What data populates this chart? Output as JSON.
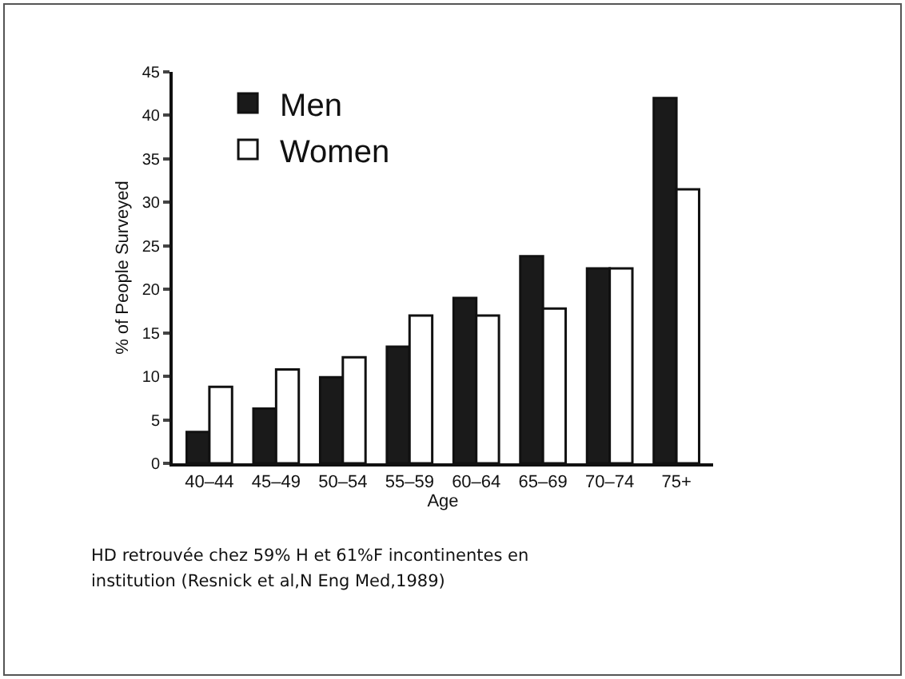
{
  "chart_data": {
    "type": "bar",
    "xlabel": "Age",
    "ylabel": "% of People Surveyed",
    "categories": [
      "40–44",
      "45–49",
      "50–54",
      "55–59",
      "60–64",
      "65–69",
      "70–74",
      "75+"
    ],
    "series": [
      {
        "name": "Men",
        "color": "#1a1a1a",
        "values": [
          3.6,
          6.3,
          9.9,
          13.4,
          19.0,
          23.8,
          22.4,
          42.0
        ]
      },
      {
        "name": "Women",
        "color": "#ffffff",
        "values": [
          8.8,
          10.8,
          12.2,
          17.0,
          17.0,
          17.8,
          22.4,
          31.5
        ]
      }
    ],
    "ylim": [
      0,
      45
    ],
    "yticks": [
      0,
      5,
      10,
      15,
      20,
      25,
      30,
      35,
      40,
      45
    ],
    "grid": false,
    "legend": "top left",
    "annotations": [
      "HD retrouvée chez 59% H et 61%F incontinentes en institution (Resnick et al,N Eng Med,1989)"
    ]
  }
}
